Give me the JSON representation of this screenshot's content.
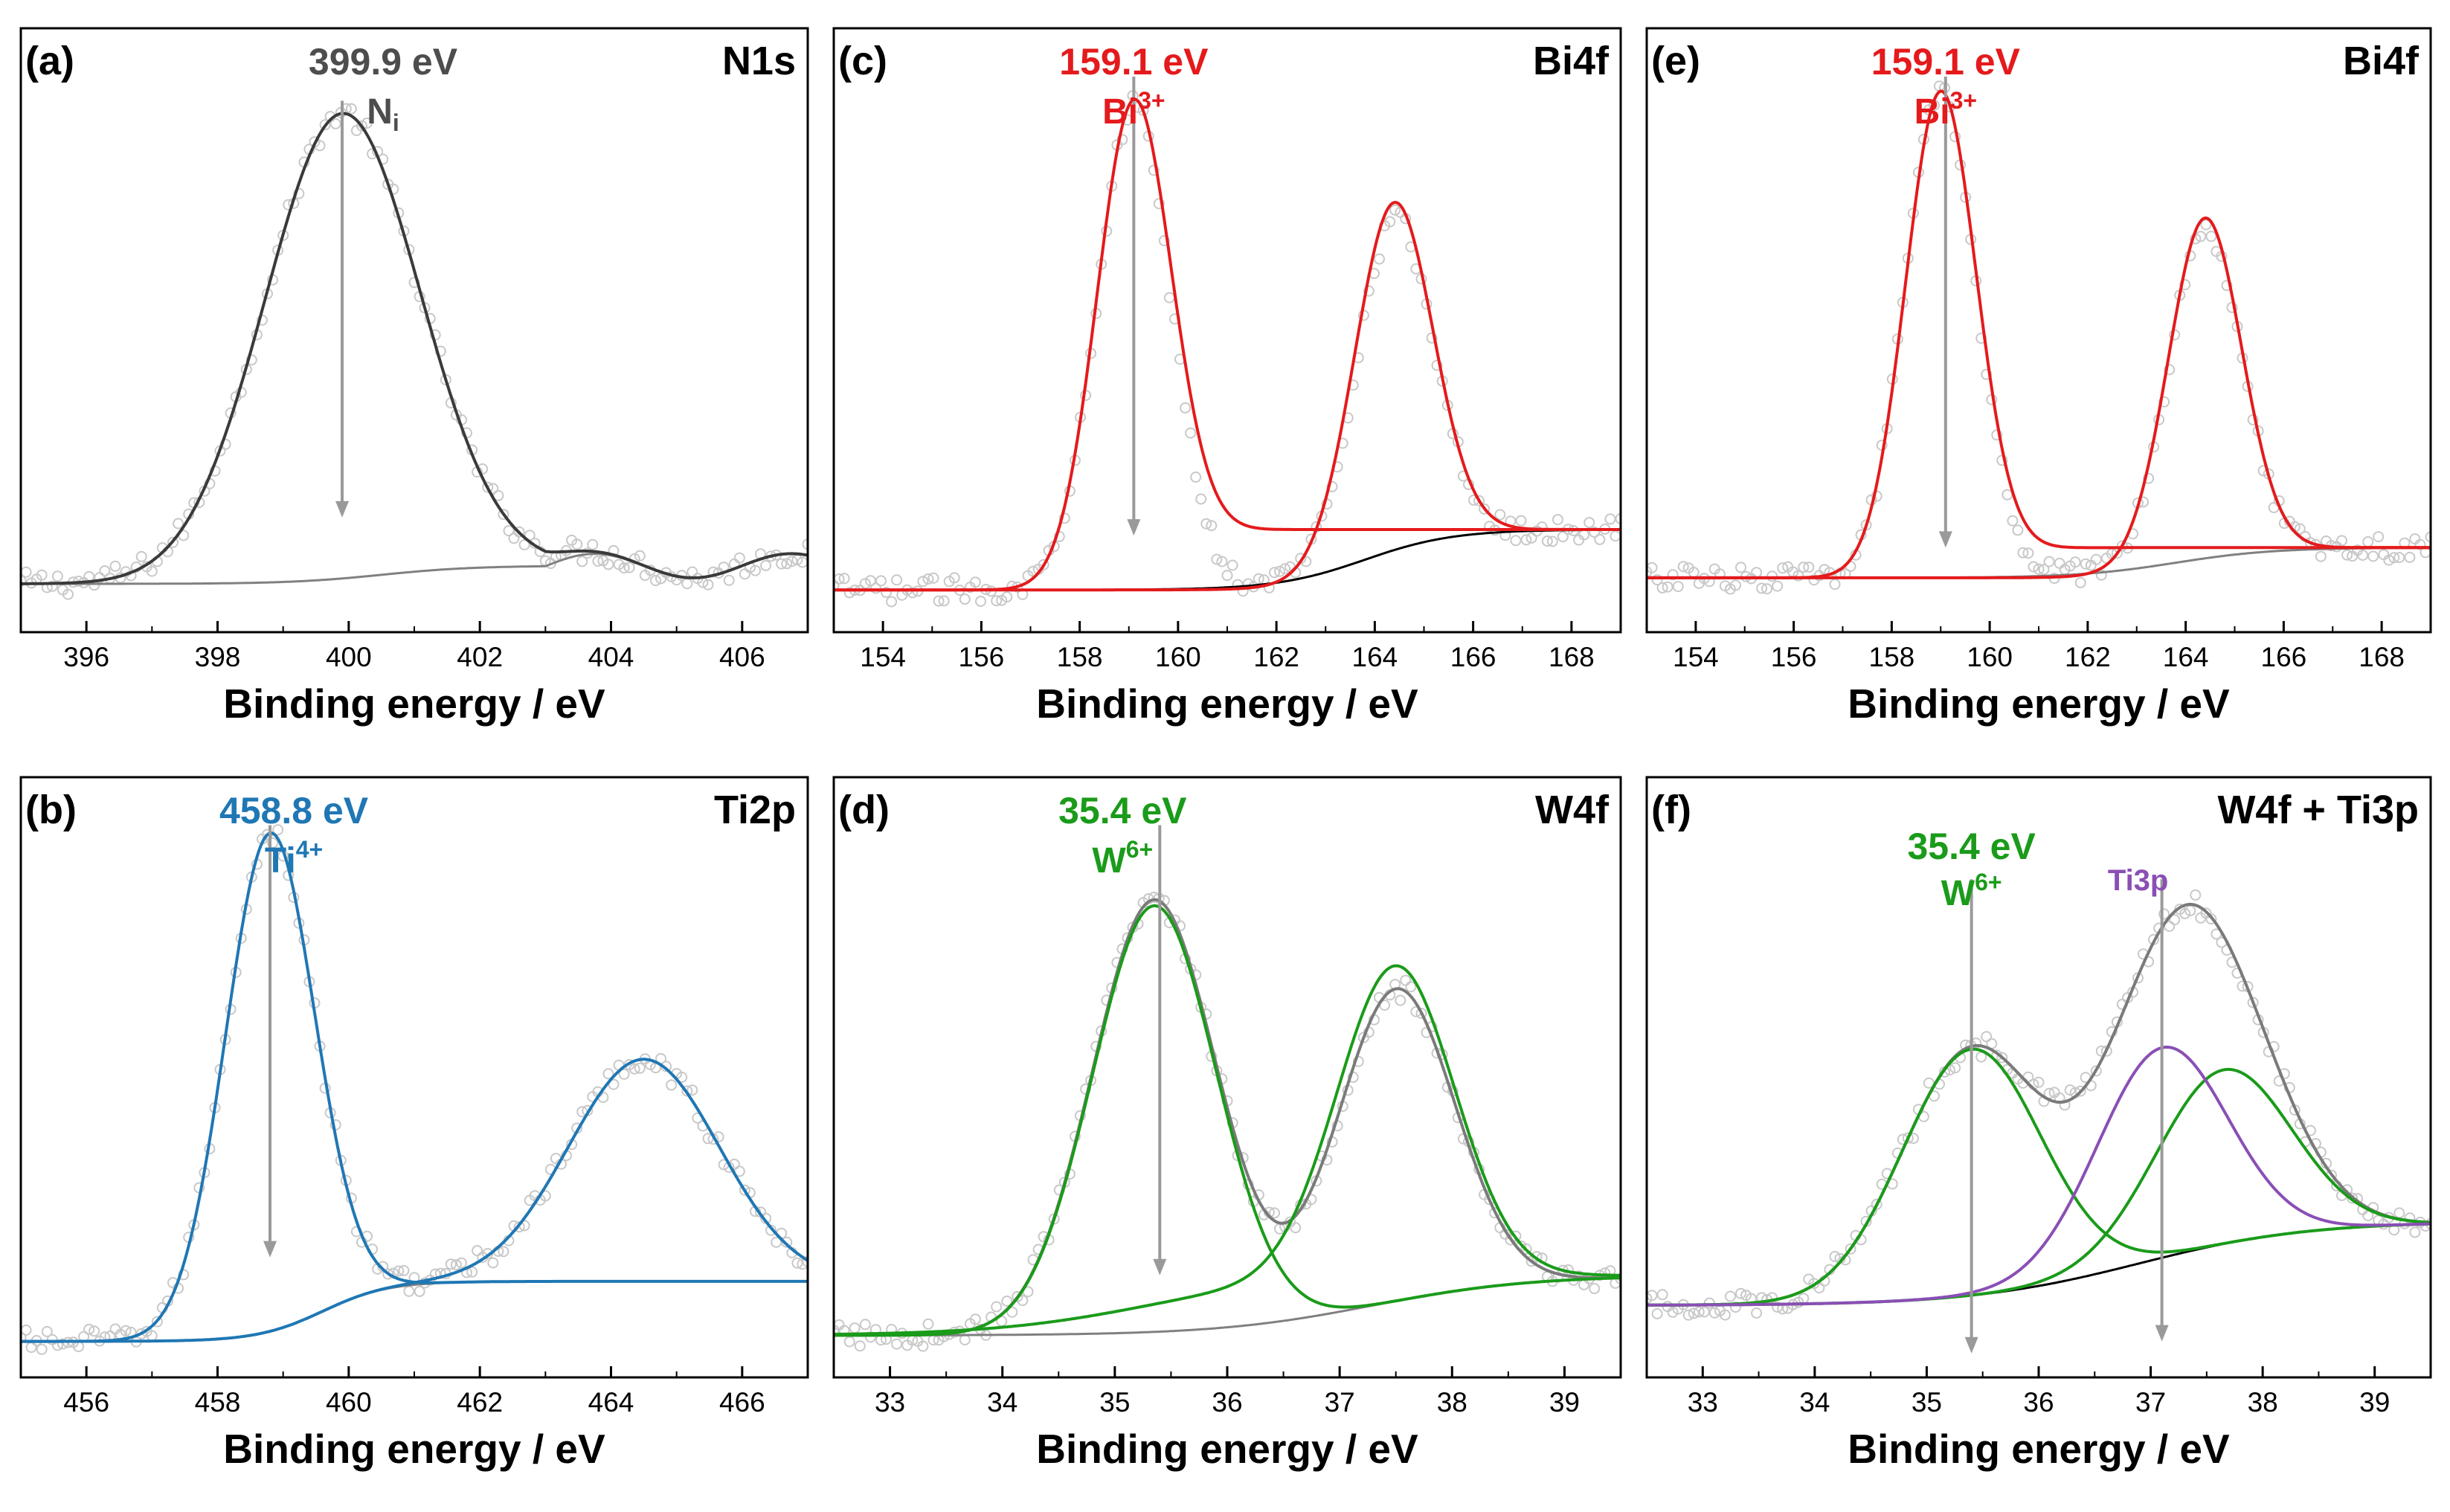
{
  "figure": {
    "xlabel": "Binding energy / eV"
  },
  "chart_data": [
    {
      "id": "a",
      "type": "line",
      "panel_label": "(a)",
      "title": "N1s",
      "xlabel": "Binding energy / eV",
      "ylabel": "",
      "xlim": [
        395,
        407
      ],
      "ylim": [
        0,
        1
      ],
      "xticks": [
        396,
        398,
        400,
        402,
        404,
        406
      ],
      "minor_step": 1,
      "annotations": [
        {
          "x": 399.9,
          "text": "399.9 eV",
          "state": "N",
          "state_sub": "i",
          "state_sup": "",
          "color": "#4d4d4d",
          "y_top": 0.88,
          "y_bottom": 0.19
        }
      ],
      "scatter": {
        "name": "experimental",
        "color": "#c8c8c8"
      },
      "series": [
        {
          "name": "background",
          "color": "#808080",
          "bg": {
            "start": 0.08,
            "end": 0.11,
            "cx": 400.5,
            "w": 0.7
          },
          "peaks": []
        },
        {
          "name": "N-i fit",
          "color": "#3a3a3a",
          "bg": {
            "start": 0.08,
            "end": 0.11,
            "cx": 400.5,
            "w": 0.7
          },
          "peaks": [
            {
              "c": 399.9,
              "h": 0.77,
              "w": 1.18
            }
          ]
        }
      ],
      "wave": {
        "amp": 0.02,
        "start": 403.0,
        "period": 3.0
      }
    },
    {
      "id": "b",
      "type": "line",
      "panel_label": "(b)",
      "title": "Ti2p",
      "xlabel": "Binding energy / eV",
      "ylabel": "",
      "xlim": [
        455,
        467
      ],
      "ylim": [
        0,
        1
      ],
      "xticks": [
        456,
        458,
        460,
        462,
        464,
        466
      ],
      "minor_step": 1,
      "annotations": [
        {
          "x": 458.8,
          "text": "458.8 eV",
          "state": "Ti",
          "state_sub": "",
          "state_sup": "4+",
          "color": "#1f77b4",
          "y_top": 0.92,
          "y_bottom": 0.2
        }
      ],
      "scatter": {
        "name": "experimental",
        "color": "#c8c8c8"
      },
      "series": [
        {
          "name": "background",
          "color": "#808080",
          "bg": {
            "start": 0.06,
            "end": 0.16,
            "cx": 459.6,
            "w": 0.5
          },
          "peaks": []
        },
        {
          "name": "Ti2p3/2 fit",
          "color": "#1f77b4",
          "bg": {
            "start": 0.06,
            "end": 0.16,
            "cx": 459.6,
            "w": 0.5
          },
          "peaks": [
            {
              "c": 458.8,
              "h": 0.83,
              "w": 0.68
            }
          ]
        },
        {
          "name": "Ti2p1/2 fit",
          "color": "#1f77b4",
          "bg": {
            "start": 0.06,
            "end": 0.16,
            "cx": 459.6,
            "w": 0.5
          },
          "peaks": [
            {
              "c": 464.5,
              "h": 0.37,
              "w": 1.15
            }
          ]
        }
      ]
    },
    {
      "id": "c",
      "type": "line",
      "panel_label": "(c)",
      "title": "Bi4f",
      "xlabel": "Binding energy / eV",
      "ylabel": "",
      "xlim": [
        153,
        169
      ],
      "ylim": [
        0,
        1
      ],
      "xticks": [
        154,
        156,
        158,
        160,
        162,
        164,
        166,
        168
      ],
      "minor_step": 1,
      "annotations": [
        {
          "x": 159.1,
          "text": "159.1 eV",
          "state": "Bi",
          "state_sub": "",
          "state_sup": "3+",
          "color": "#e41a1c",
          "y_top": 0.92,
          "y_bottom": 0.16
        }
      ],
      "scatter": {
        "name": "experimental",
        "color": "#c8c8c8"
      },
      "series": [
        {
          "name": "background",
          "color": "#000000",
          "bg": {
            "start": 0.07,
            "end": 0.17,
            "cx": 163.8,
            "w": 0.9
          },
          "peaks": []
        },
        {
          "name": "Bi4f7/2 fit",
          "color": "#e41a1c",
          "bg": {
            "start": 0.07,
            "end": 0.17,
            "cx": 159.8,
            "w": 0.35
          },
          "peaks": [
            {
              "c": 159.1,
              "h": 0.8,
              "w": 0.75
            }
          ]
        },
        {
          "name": "Bi4f5/2 fit",
          "color": "#e41a1c",
          "bg": {
            "start": 0.07,
            "end": 0.17,
            "cx": 163.2,
            "w": 0.5
          },
          "peaks": [
            {
              "c": 164.4,
              "h": 0.55,
              "w": 0.78
            }
          ]
        }
      ]
    },
    {
      "id": "d",
      "type": "line",
      "panel_label": "(d)",
      "title": "W4f",
      "xlabel": "Binding energy / eV",
      "ylabel": "",
      "xlim": [
        32.5,
        39.5
      ],
      "ylim": [
        0,
        1
      ],
      "xticks": [
        33,
        34,
        35,
        36,
        37,
        38,
        39
      ],
      "minor_step": 0.5,
      "annotations": [
        {
          "x": 35.4,
          "text": "35.4 eV",
          "state": "W",
          "state_sub": "",
          "state_sup": "6+",
          "color": "#1a9b1a",
          "y_top": 0.92,
          "y_bottom": 0.17
        }
      ],
      "scatter": {
        "name": "experimental",
        "color": "#c8c8c8"
      },
      "series": [
        {
          "name": "background",
          "color": "#808080",
          "bg": {
            "start": 0.07,
            "end": 0.17,
            "cx": 37.3,
            "w": 0.7
          },
          "peaks": []
        },
        {
          "name": "envelope",
          "color": "#7a7a7a",
          "bg": {
            "start": 0.07,
            "end": 0.17,
            "cx": 37.3,
            "w": 0.7
          },
          "peaks": [
            {
              "c": 35.35,
              "h": 0.72,
              "w": 0.55
            },
            {
              "c": 37.5,
              "h": 0.52,
              "w": 0.52
            }
          ]
        },
        {
          "name": "W4f7/2 fit",
          "color": "#1a9b1a",
          "bg": {
            "start": 0.07,
            "end": 0.17,
            "cx": 37.3,
            "w": 0.7
          },
          "peaks": [
            {
              "c": 35.35,
              "h": 0.71,
              "w": 0.55
            }
          ]
        },
        {
          "name": "W4f5/2 fit",
          "color": "#1a9b1a",
          "bg": {
            "start": 0.07,
            "end": 0.17,
            "cx": 35.3,
            "w": 0.7
          },
          "peaks": [
            {
              "c": 37.5,
              "h": 0.52,
              "w": 0.52
            }
          ]
        }
      ]
    },
    {
      "id": "e",
      "type": "line",
      "panel_label": "(e)",
      "title": "Bi4f",
      "xlabel": "Binding energy / eV",
      "ylabel": "",
      "xlim": [
        153,
        169
      ],
      "ylim": [
        0,
        1
      ],
      "xticks": [
        154,
        156,
        158,
        160,
        162,
        164,
        166,
        168
      ],
      "minor_step": 1,
      "annotations": [
        {
          "x": 159.1,
          "text": "159.1 eV",
          "state": "Bi",
          "state_sub": "",
          "state_sup": "3+",
          "color": "#e41a1c",
          "y_top": 0.92,
          "y_bottom": 0.14
        }
      ],
      "scatter": {
        "name": "experimental",
        "color": "#c8c8c8"
      },
      "series": [
        {
          "name": "background",
          "color": "#808080",
          "bg": {
            "start": 0.09,
            "end": 0.14,
            "cx": 163.8,
            "w": 1.0
          },
          "peaks": []
        },
        {
          "name": "Bi4f7/2 fit",
          "color": "#e41a1c",
          "bg": {
            "start": 0.09,
            "end": 0.14,
            "cx": 159.8,
            "w": 0.4
          },
          "peaks": [
            {
              "c": 159.0,
              "h": 0.8,
              "w": 0.72
            }
          ]
        },
        {
          "name": "Bi4f5/2 fit",
          "color": "#e41a1c",
          "bg": {
            "start": 0.09,
            "end": 0.14,
            "cx": 163.2,
            "w": 0.5
          },
          "peaks": [
            {
              "c": 164.4,
              "h": 0.55,
              "w": 0.74
            }
          ]
        }
      ]
    },
    {
      "id": "f",
      "type": "line",
      "panel_label": "(f)",
      "title": "W4f + Ti3p",
      "xlabel": "Binding energy / eV",
      "ylabel": "",
      "xlim": [
        32.5,
        39.5
      ],
      "ylim": [
        0,
        1
      ],
      "xticks": [
        33,
        34,
        35,
        36,
        37,
        38,
        39
      ],
      "minor_step": 0.5,
      "annotations": [
        {
          "x": 35.4,
          "text": "35.4 eV",
          "state": "W",
          "state_sub": "",
          "state_sup": "6+",
          "color": "#1a9b1a",
          "y_top": 0.83,
          "y_bottom": 0.04
        },
        {
          "x": 37.1,
          "text": "",
          "state": "Ti3p",
          "state_sub": "",
          "state_sup": "",
          "color": "#8a4fb5",
          "y_top": 0.83,
          "y_bottom": 0.06
        }
      ],
      "scatter": {
        "name": "experimental",
        "color": "#c8c8c8"
      },
      "series": [
        {
          "name": "background",
          "color": "#000000",
          "bg": {
            "start": 0.12,
            "end": 0.26,
            "cx": 36.9,
            "w": 0.75
          },
          "peaks": []
        },
        {
          "name": "envelope",
          "color": "#7a7a7a",
          "bg": {
            "start": 0.12,
            "end": 0.26,
            "cx": 36.9,
            "w": 0.75
          },
          "peaks": [
            {
              "c": 35.4,
              "h": 0.41,
              "w": 0.62
            },
            {
              "c": 37.65,
              "h": 0.29,
              "w": 0.6
            },
            {
              "c": 37.1,
              "h": 0.35,
              "w": 0.58
            }
          ]
        },
        {
          "name": "W4f7/2 fit",
          "color": "#1a9b1a",
          "bg": {
            "start": 0.12,
            "end": 0.26,
            "cx": 36.9,
            "w": 0.75
          },
          "peaks": [
            {
              "c": 35.4,
              "h": 0.41,
              "w": 0.62
            }
          ]
        },
        {
          "name": "W4f5/2 fit",
          "color": "#1a9b1a",
          "bg": {
            "start": 0.12,
            "end": 0.26,
            "cx": 36.9,
            "w": 0.75
          },
          "peaks": [
            {
              "c": 37.65,
              "h": 0.29,
              "w": 0.6
            }
          ]
        },
        {
          "name": "Ti3p fit",
          "color": "#8a4fb5",
          "bg": {
            "start": 0.12,
            "end": 0.26,
            "cx": 36.9,
            "w": 0.75
          },
          "peaks": [
            {
              "c": 37.1,
              "h": 0.35,
              "w": 0.58
            }
          ]
        }
      ]
    }
  ]
}
